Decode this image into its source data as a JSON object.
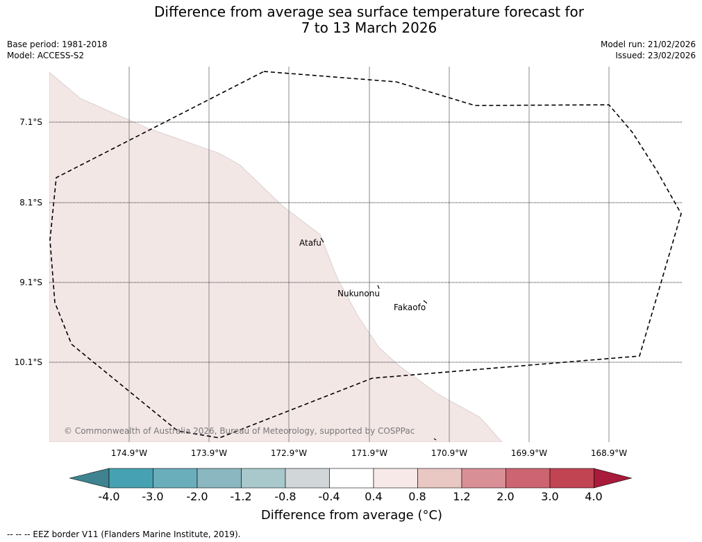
{
  "title": {
    "line1": "Difference from average sea surface temperature forecast for",
    "line2": "7 to 13 March 2026"
  },
  "meta": {
    "base_period": "Base period: 1981-2018",
    "model": "Model: ACCESS-S2",
    "model_run": "Model run: 21/02/2026",
    "issued": "Issued: 23/02/2026"
  },
  "map": {
    "lat_labels": [
      "7.1°S",
      "8.1°S",
      "9.1°S",
      "10.1°S"
    ],
    "lon_labels": [
      "174.9°W",
      "173.9°W",
      "172.9°W",
      "171.9°W",
      "170.9°W",
      "169.9°W",
      "168.9°W"
    ],
    "places": [
      "Atafu",
      "Nukunonu",
      "Fakaofo"
    ],
    "copyright": "© Commonwealth of Australia 2026, Bureau of Meteorology, supported by COSPPac",
    "fill_category": "0.4 to 0.8"
  },
  "colorbar": {
    "ticks": [
      "-4.0",
      "-3.0",
      "-2.0",
      "-1.2",
      "-0.8",
      "-0.4",
      "0.4",
      "0.8",
      "1.2",
      "2.0",
      "3.0",
      "4.0"
    ],
    "colors": [
      "#3e838f",
      "#46a2b2",
      "#6aaebc",
      "#8ab7c0",
      "#a8c8cc",
      "#d1d7d9",
      "#ffffff",
      "#f6e9e8",
      "#e9c7c3",
      "#d98f96",
      "#cc6571",
      "#c14453",
      "#a81b3a"
    ],
    "label": "Difference from average (°C)"
  },
  "legend": {
    "text": "--  --  -- EEZ border V11 (Flanders Marine Institute, 2019)."
  }
}
